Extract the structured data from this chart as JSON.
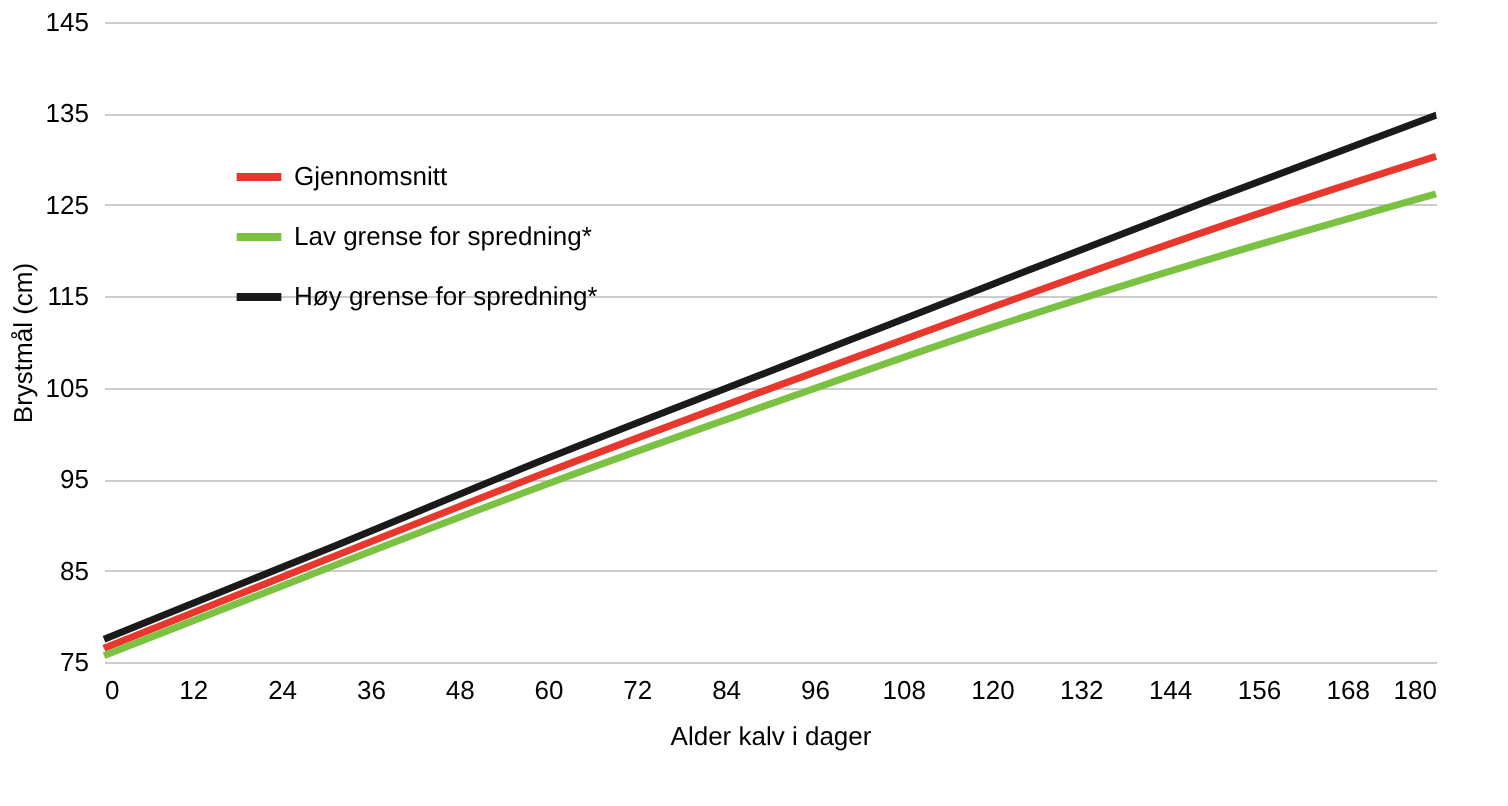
{
  "chart_data": {
    "type": "line",
    "xlabel": "Alder kalv i dager",
    "ylabel": "Brystmål (cm)",
    "x": [
      0,
      30,
      60,
      90,
      120,
      150,
      180
    ],
    "series": [
      {
        "name": "Gjennomsnitt",
        "color": "#e8372c",
        "values": [
          76.5,
          86.2,
          95.8,
          104.9,
          113.8,
          122.4,
          130.3
        ]
      },
      {
        "name": "Lav grense for spredning*",
        "color": "#7cc242",
        "values": [
          75.7,
          85.2,
          94.5,
          103.2,
          111.6,
          119.2,
          126.2
        ]
      },
      {
        "name": "Høy grense for spredning*",
        "color": "#1a1a1a",
        "values": [
          77.5,
          87.3,
          97.3,
          106.8,
          116.3,
          125.7,
          134.8
        ]
      }
    ],
    "xlim": [
      0,
      180
    ],
    "xticks": [
      0,
      12,
      24,
      36,
      48,
      60,
      72,
      84,
      96,
      108,
      120,
      132,
      144,
      156,
      168,
      180
    ],
    "ylim": [
      75,
      145
    ],
    "yticks": [
      75,
      85,
      95,
      105,
      115,
      125,
      135,
      145
    ],
    "grid": "y",
    "legend": "top left",
    "marker": "none",
    "line_style": "solid"
  }
}
